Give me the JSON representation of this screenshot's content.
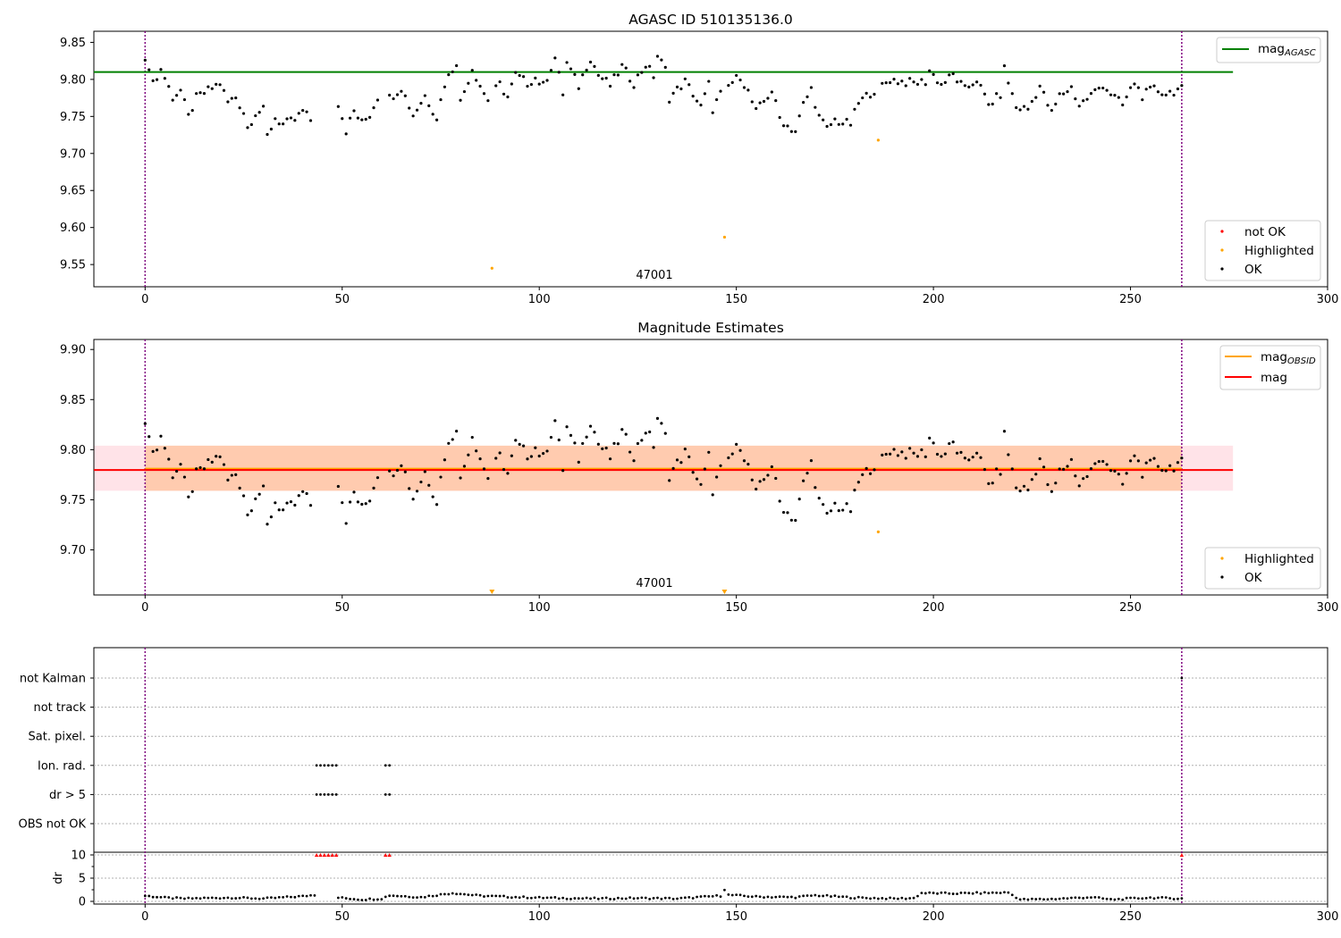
{
  "chart_data": [
    {
      "type": "scatter",
      "title": "AGASC ID 510135136.0",
      "xlim": [
        -13,
        300
      ],
      "ylim": [
        9.52,
        9.865
      ],
      "xticks": [
        0,
        50,
        100,
        150,
        200,
        250,
        300
      ],
      "yticks": [
        9.55,
        9.6,
        9.65,
        9.7,
        9.75,
        9.8,
        9.85
      ],
      "annotation": "47001",
      "mag_agasc": 9.81,
      "obs_bounds": [
        0,
        263
      ],
      "legend_lines": [
        {
          "label": "mag",
          "sub": "AGASC",
          "color": "#008000"
        }
      ],
      "legend_points": [
        {
          "label": "not OK",
          "color": "#ff0000"
        },
        {
          "label": "Highlighted",
          "color": "#ffa500"
        },
        {
          "label": "OK",
          "color": "#000000"
        }
      ],
      "highlighted": [
        [
          88,
          9.545
        ],
        [
          147,
          9.587
        ],
        [
          186,
          9.718
        ]
      ],
      "series_ok_anchors": [
        [
          0,
          9.832
        ],
        [
          1,
          9.808
        ],
        [
          3,
          9.799
        ],
        [
          4,
          9.815
        ],
        [
          7,
          9.776
        ],
        [
          9,
          9.785
        ],
        [
          11,
          9.749
        ],
        [
          13,
          9.775
        ],
        [
          16,
          9.785
        ],
        [
          19,
          9.795
        ],
        [
          21,
          9.769
        ],
        [
          23,
          9.776
        ],
        [
          25,
          9.756
        ],
        [
          26,
          9.735
        ],
        [
          28,
          9.755
        ],
        [
          30,
          9.758
        ],
        [
          31,
          9.723
        ],
        [
          33,
          9.748
        ],
        [
          35,
          9.739
        ],
        [
          38,
          9.745
        ],
        [
          40,
          9.757
        ],
        [
          42,
          9.745
        ],
        [
          49,
          9.768
        ],
        [
          51,
          9.731
        ],
        [
          53,
          9.757
        ],
        [
          55,
          9.741
        ],
        [
          57,
          9.752
        ],
        [
          59,
          9.776
        ],
        [
          62,
          9.775
        ],
        [
          65,
          9.789
        ],
        [
          68,
          9.752
        ],
        [
          71,
          9.778
        ],
        [
          74,
          9.749
        ],
        [
          76,
          9.794
        ],
        [
          79,
          9.824
        ],
        [
          80,
          9.769
        ],
        [
          83,
          9.815
        ],
        [
          86,
          9.781
        ],
        [
          87,
          9.773
        ],
        [
          90,
          9.793
        ],
        [
          92,
          9.776
        ],
        [
          94,
          9.806
        ],
        [
          97,
          9.795
        ],
        [
          99,
          9.802
        ],
        [
          101,
          9.791
        ],
        [
          104,
          9.829
        ],
        [
          106,
          9.781
        ],
        [
          107,
          9.822
        ],
        [
          110,
          9.791
        ],
        [
          112,
          9.818
        ],
        [
          113,
          9.829
        ],
        [
          115,
          9.806
        ],
        [
          118,
          9.792
        ],
        [
          121,
          9.817
        ],
        [
          124,
          9.795
        ],
        [
          127,
          9.82
        ],
        [
          129,
          9.805
        ],
        [
          130,
          9.832
        ],
        [
          132,
          9.813
        ],
        [
          133,
          9.775
        ],
        [
          137,
          9.797
        ],
        [
          139,
          9.781
        ],
        [
          141,
          9.762
        ],
        [
          143,
          9.793
        ],
        [
          144,
          9.76
        ],
        [
          146,
          9.78
        ],
        [
          149,
          9.796
        ],
        [
          151,
          9.805
        ],
        [
          153,
          9.783
        ],
        [
          155,
          9.756
        ],
        [
          157,
          9.77
        ],
        [
          159,
          9.785
        ],
        [
          161,
          9.748
        ],
        [
          163,
          9.737
        ],
        [
          165,
          9.73
        ],
        [
          167,
          9.766
        ],
        [
          169,
          9.787
        ],
        [
          171,
          9.749
        ],
        [
          173,
          9.733
        ],
        [
          175,
          9.745
        ],
        [
          177,
          9.741
        ],
        [
          179,
          9.74
        ],
        [
          181,
          9.768
        ],
        [
          184,
          9.782
        ],
        [
          186,
          9.788
        ],
        [
          189,
          9.8
        ],
        [
          192,
          9.797
        ],
        [
          195,
          9.795
        ],
        [
          198,
          9.797
        ],
        [
          199,
          9.812
        ],
        [
          202,
          9.793
        ],
        [
          205,
          9.806
        ],
        [
          208,
          9.786
        ],
        [
          211,
          9.8
        ],
        [
          214,
          9.765
        ],
        [
          217,
          9.78
        ],
        [
          218,
          9.814
        ],
        [
          221,
          9.762
        ],
        [
          224,
          9.76
        ],
        [
          227,
          9.791
        ],
        [
          230,
          9.754
        ],
        [
          232,
          9.778
        ],
        [
          235,
          9.789
        ],
        [
          237,
          9.765
        ],
        [
          240,
          9.779
        ],
        [
          243,
          9.793
        ],
        [
          245,
          9.781
        ],
        [
          248,
          9.765
        ],
        [
          251,
          9.796
        ],
        [
          253,
          9.778
        ],
        [
          256,
          9.787
        ],
        [
          259,
          9.781
        ],
        [
          262,
          9.786
        ]
      ]
    },
    {
      "type": "scatter",
      "title": "Magnitude Estimates",
      "xlim": [
        -13,
        300
      ],
      "ylim": [
        9.655,
        9.91
      ],
      "xticks": [
        0,
        50,
        100,
        150,
        200,
        250,
        300
      ],
      "yticks": [
        9.7,
        9.75,
        9.8,
        9.85,
        9.9
      ],
      "annotation": "47001",
      "mag": 9.781,
      "mag_obsid": 9.781,
      "band": [
        9.759,
        9.804
      ],
      "legend_lines": [
        {
          "label": "mag",
          "sub": "OBSID",
          "color": "#ffa500"
        },
        {
          "label": "mag",
          "sub": "",
          "color": "#ff0000"
        }
      ],
      "legend_points": [
        {
          "label": "Highlighted",
          "color": "#ffa500"
        },
        {
          "label": "OK",
          "color": "#000000"
        }
      ],
      "highlighted": [
        [
          186,
          9.718
        ]
      ],
      "clipped_markers": [
        88,
        147
      ]
    },
    {
      "type": "scatter",
      "title": "",
      "flag_rows": [
        "not Kalman",
        "not track",
        "Sat. pixel.",
        "Ion. rad.",
        "dr > 5",
        "OBS not OK"
      ],
      "flag_points": {
        "Ion. rad.": [
          43.5,
          44.5,
          45.5,
          46.5,
          47.5,
          48.5,
          61,
          62
        ],
        "dr > 5": [
          43.5,
          44.5,
          45.5,
          46.5,
          47.5,
          48.5,
          61,
          62
        ],
        "not Kalman": [
          263
        ]
      },
      "dr_label": "dr",
      "dr_yticks": [
        0,
        5,
        10
      ],
      "dr_ylim": [
        0,
        10
      ],
      "dr_red_markers": [
        43.5,
        44.5,
        45.5,
        46.5,
        47.5,
        48.5,
        61,
        62,
        263
      ],
      "dr_bump_at": 147,
      "dr_anchors": [
        [
          0,
          1.2
        ],
        [
          5,
          0.8
        ],
        [
          10,
          0.6
        ],
        [
          15,
          0.7
        ],
        [
          22,
          0.8
        ],
        [
          30,
          0.6
        ],
        [
          40,
          1.1
        ],
        [
          43,
          1.4
        ],
        [
          49,
          0.8
        ],
        [
          55,
          0.4
        ],
        [
          60,
          0.6
        ],
        [
          62,
          1.3
        ],
        [
          70,
          0.9
        ],
        [
          78,
          1.8
        ],
        [
          85,
          1.2
        ],
        [
          95,
          0.9
        ],
        [
          105,
          0.7
        ],
        [
          115,
          0.6
        ],
        [
          125,
          0.7
        ],
        [
          135,
          0.6
        ],
        [
          146,
          1.2
        ],
        [
          147,
          2.6
        ],
        [
          148,
          1.4
        ],
        [
          155,
          1.0
        ],
        [
          165,
          0.9
        ],
        [
          170,
          1.3
        ],
        [
          180,
          0.8
        ],
        [
          190,
          0.6
        ],
        [
          195,
          0.7
        ],
        [
          197,
          1.8
        ],
        [
          205,
          1.7
        ],
        [
          219,
          1.9
        ],
        [
          222,
          0.4
        ],
        [
          230,
          0.5
        ],
        [
          240,
          0.9
        ],
        [
          245,
          0.4
        ],
        [
          255,
          0.8
        ],
        [
          263,
          0.6
        ]
      ]
    }
  ],
  "colors": {
    "agasc_line": "#008000",
    "mag_line": "#ff0000",
    "obsid_line": "#ffa500",
    "band_outer": "#ffc0cb",
    "band_inner": "#ffbf90",
    "obs_bound": "#800080",
    "ok": "#000000",
    "not_ok": "#ff0000",
    "highlighted": "#ffa500"
  }
}
